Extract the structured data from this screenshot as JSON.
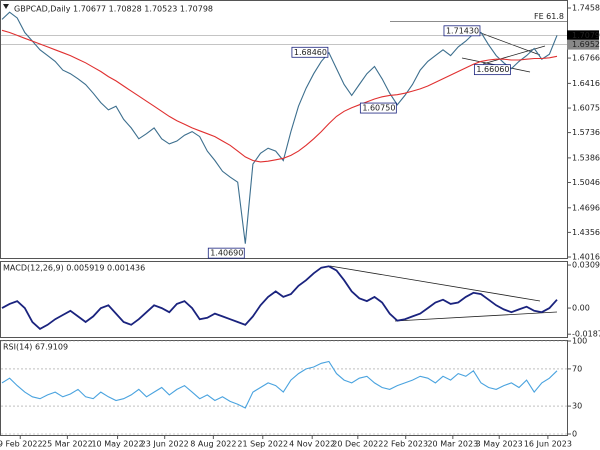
{
  "chart_data": [
    {
      "type": "line",
      "title": "GBPCAD,Daily 1.70677 1.70828 1.70523 1.70798",
      "xlim": [
        0,
        73
      ],
      "ylim": [
        1.4002,
        1.7555
      ],
      "yticks": [
        {
          "value": 1.7458,
          "label": "1.74580"
        },
        {
          "value": 1.6766,
          "label": "1.67660"
        },
        {
          "value": 1.6416,
          "label": "1.64160"
        },
        {
          "value": 1.6075,
          "label": "1.60750"
        },
        {
          "value": 1.5736,
          "label": "1.57360"
        },
        {
          "value": 1.5386,
          "label": "1.53860"
        },
        {
          "value": 1.5046,
          "label": "1.50460"
        },
        {
          "value": 1.4696,
          "label": "1.46960"
        },
        {
          "value": 1.4356,
          "label": "1.43560"
        },
        {
          "value": 1.4016,
          "label": "1.40160"
        }
      ],
      "price_markers": [
        {
          "value": 1.70798,
          "label": "1.70798",
          "color": "#000000"
        },
        {
          "value": 1.6952,
          "label": "1.69520",
          "color": "#888888"
        }
      ],
      "level": {
        "value": 1.727,
        "label": "FE 61.8"
      },
      "annotations": [
        {
          "x": 32,
          "value": 1.4069,
          "label": "1.40690"
        },
        {
          "x": 43,
          "value": 1.6846,
          "label": "1.68460"
        },
        {
          "x": 52,
          "value": 1.6075,
          "label": "1.60750"
        },
        {
          "x": 63,
          "value": 1.7143,
          "label": "1.71430"
        },
        {
          "x": 67,
          "value": 1.6606,
          "label": "1.66060"
        }
      ],
      "series": [
        {
          "color": "#3d6f8e",
          "values": [
            1.73,
            1.74,
            1.732,
            1.712,
            1.7,
            1.688,
            1.68,
            1.672,
            1.66,
            1.655,
            1.648,
            1.64,
            1.628,
            1.615,
            1.605,
            1.61,
            1.592,
            1.58,
            1.565,
            1.572,
            1.58,
            1.565,
            1.558,
            1.562,
            1.57,
            1.575,
            1.568,
            1.548,
            1.535,
            1.52,
            1.512,
            1.505,
            1.42,
            1.53,
            1.545,
            1.552,
            1.548,
            1.535,
            1.575,
            1.61,
            1.635,
            1.655,
            1.672,
            1.684,
            1.662,
            1.64,
            1.625,
            1.64,
            1.655,
            1.665,
            1.648,
            1.628,
            1.612,
            1.625,
            1.64,
            1.66,
            1.672,
            1.68,
            1.688,
            1.68,
            1.692,
            1.7,
            1.71,
            1.712,
            1.695,
            1.68,
            1.67,
            1.662,
            1.672,
            1.68,
            1.69,
            1.675,
            1.682,
            1.708
          ]
        },
        {
          "color": "#e03030",
          "values": [
            1.715,
            1.712,
            1.708,
            1.704,
            1.7,
            1.696,
            1.692,
            1.688,
            1.684,
            1.68,
            1.675,
            1.67,
            1.664,
            1.658,
            1.651,
            1.645,
            1.638,
            1.631,
            1.624,
            1.617,
            1.61,
            1.603,
            1.596,
            1.59,
            1.585,
            1.58,
            1.576,
            1.572,
            1.568,
            1.562,
            1.556,
            1.548,
            1.54,
            1.535,
            1.533,
            1.534,
            1.536,
            1.538,
            1.542,
            1.548,
            1.556,
            1.565,
            1.575,
            1.586,
            1.596,
            1.603,
            1.608,
            1.612,
            1.616,
            1.62,
            1.623,
            1.625,
            1.626,
            1.628,
            1.631,
            1.634,
            1.638,
            1.643,
            1.648,
            1.653,
            1.658,
            1.663,
            1.668,
            1.672,
            1.674,
            1.675,
            1.675,
            1.674,
            1.674,
            1.675,
            1.676,
            1.676,
            1.677,
            1.679
          ]
        }
      ]
    },
    {
      "type": "line",
      "title": "MACD(12,26,9) 0.005919 0.001436",
      "xlim": [
        0,
        73
      ],
      "ylim": [
        -0.0208,
        0.0331
      ],
      "yticks": [
        0.030908,
        {
          "value": 0,
          "label": "0.00"
        },
        -0.018787
      ],
      "series": [
        {
          "color": "#1a237e",
          "values": [
            0.0,
            0.003,
            0.005,
            0.0,
            -0.01,
            -0.015,
            -0.012,
            -0.008,
            -0.005,
            -0.002,
            -0.006,
            -0.01,
            -0.006,
            0.0,
            0.002,
            -0.004,
            -0.01,
            -0.012,
            -0.008,
            -0.003,
            0.002,
            0.0,
            -0.003,
            0.003,
            0.005,
            0.0,
            -0.008,
            -0.007,
            -0.004,
            -0.006,
            -0.008,
            -0.01,
            -0.012,
            -0.006,
            0.002,
            0.008,
            0.012,
            0.008,
            0.01,
            0.016,
            0.02,
            0.025,
            0.029,
            0.03,
            0.027,
            0.02,
            0.012,
            0.007,
            0.005,
            0.008,
            0.004,
            -0.004,
            -0.009,
            -0.008,
            -0.006,
            -0.004,
            0.0,
            0.004,
            0.006,
            0.003,
            0.004,
            0.008,
            0.011,
            0.01,
            0.006,
            0.002,
            -0.001,
            -0.003,
            -0.001,
            0.001,
            -0.002,
            -0.003,
            0.0,
            0.006
          ]
        }
      ]
    },
    {
      "type": "line",
      "title": "RSI(14) 67.9109",
      "xlim": [
        0,
        73
      ],
      "ylim": [
        0,
        100
      ],
      "yticks": [
        100,
        70,
        30,
        0
      ],
      "grid": true,
      "xticks": [
        {
          "value": 2.4,
          "label": "9 Feb 2022"
        },
        {
          "value": 8.6,
          "label": "25 Mar 2022"
        },
        {
          "value": 15.2,
          "label": "10 May 2022"
        },
        {
          "value": 21.4,
          "label": "23 Jun 2022"
        },
        {
          "value": 27.8,
          "label": "8 Aug 2022"
        },
        {
          "value": 34.3,
          "label": "21 Sep 2022"
        },
        {
          "value": 40.8,
          "label": "4 Nov 2022"
        },
        {
          "value": 46.8,
          "label": "20 Dec 2022"
        },
        {
          "value": 53.1,
          "label": "2 Feb 2023"
        },
        {
          "value": 59.3,
          "label": "20 Mar 2023"
        },
        {
          "value": 65.4,
          "label": "3 May 2023"
        },
        {
          "value": 71.8,
          "label": "16 Jun 2023"
        }
      ],
      "series": [
        {
          "color": "#4aa3df",
          "values": [
            55,
            60,
            52,
            45,
            40,
            38,
            42,
            45,
            40,
            43,
            48,
            40,
            38,
            45,
            40,
            36,
            38,
            42,
            48,
            40,
            45,
            50,
            42,
            48,
            52,
            45,
            38,
            42,
            36,
            40,
            35,
            32,
            28,
            45,
            50,
            55,
            52,
            45,
            58,
            65,
            70,
            72,
            76,
            78,
            65,
            58,
            55,
            60,
            62,
            55,
            50,
            48,
            52,
            55,
            58,
            62,
            60,
            55,
            62,
            58,
            65,
            62,
            68,
            55,
            50,
            48,
            52,
            55,
            50,
            58,
            45,
            55,
            60,
            68
          ]
        }
      ]
    }
  ]
}
